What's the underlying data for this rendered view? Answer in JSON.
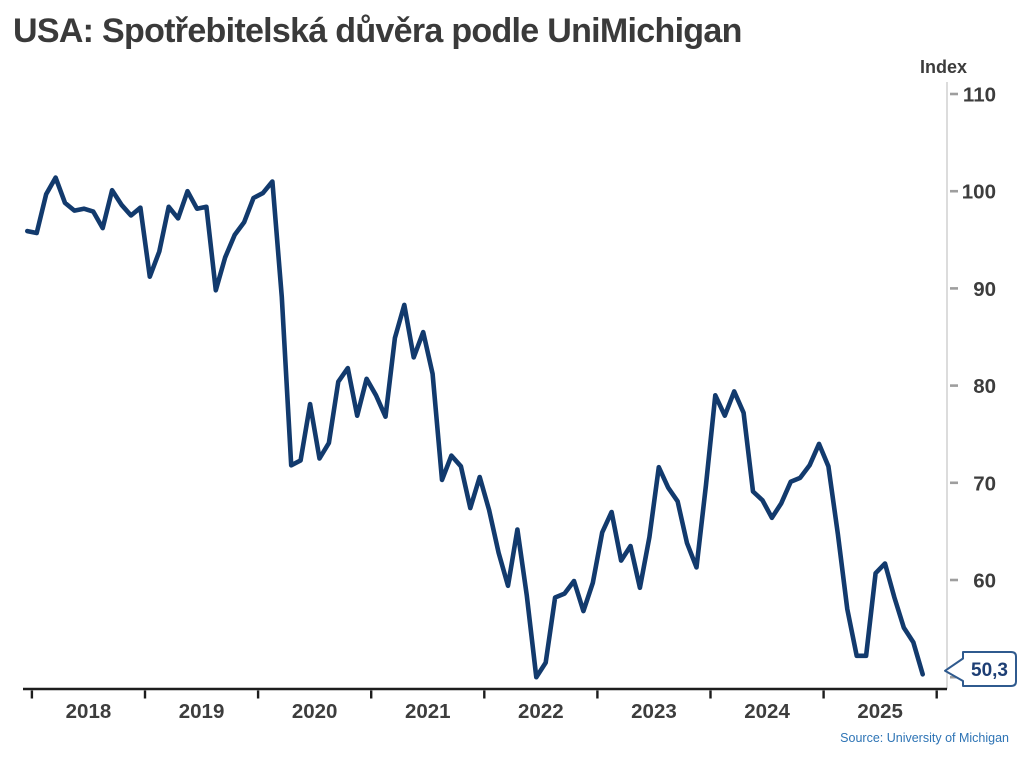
{
  "title": "USA: Spotřebitelská důvěra podle UniMichigan",
  "y_axis_title": "Index",
  "callout": {
    "label": "50,3"
  },
  "source_note": "Source: University of Michigan",
  "colors": {
    "line": "#123a6d",
    "axis_dark": "#1d1d1d",
    "axis_light": "#c9c9c9",
    "y_tick": "#9e9e9e",
    "tick_label": "#3d3d3d",
    "callout_border": "#2f5a8e",
    "callout_text": "#1d3e74",
    "source_text": "#2e74b5",
    "title_text": "#3a3a3a"
  },
  "chart_data": {
    "type": "line",
    "title": "USA: Spotřebitelská důvěra podle UniMichigan",
    "xlabel": "",
    "ylabel": "Index",
    "ylim": [
      49,
      111
    ],
    "grid": "off",
    "legend": "none",
    "y_ticks": [
      {
        "value": 110,
        "label": "110"
      },
      {
        "value": 100,
        "label": "100"
      },
      {
        "value": 90,
        "label": "90"
      },
      {
        "value": 80,
        "label": "80"
      },
      {
        "value": 70,
        "label": "70"
      },
      {
        "value": 60,
        "label": "60"
      },
      {
        "value": 50,
        "label": ""
      }
    ],
    "x_tick_years": [
      "2018",
      "2019",
      "2020",
      "2021",
      "2022",
      "2023",
      "2024",
      "2025"
    ],
    "x_range": [
      "2017-12",
      "2025-11"
    ],
    "last_point_label": "50,3",
    "series": [
      {
        "name": "University of Michigan Consumer Sentiment Index",
        "dates": [
          "2017-12",
          "2018-01",
          "2018-02",
          "2018-03",
          "2018-04",
          "2018-05",
          "2018-06",
          "2018-07",
          "2018-08",
          "2018-09",
          "2018-10",
          "2018-11",
          "2018-12",
          "2019-01",
          "2019-02",
          "2019-03",
          "2019-04",
          "2019-05",
          "2019-06",
          "2019-07",
          "2019-08",
          "2019-09",
          "2019-10",
          "2019-11",
          "2019-12",
          "2020-01",
          "2020-02",
          "2020-03",
          "2020-04",
          "2020-05",
          "2020-06",
          "2020-07",
          "2020-08",
          "2020-09",
          "2020-10",
          "2020-11",
          "2020-12",
          "2021-01",
          "2021-02",
          "2021-03",
          "2021-04",
          "2021-05",
          "2021-06",
          "2021-07",
          "2021-08",
          "2021-09",
          "2021-10",
          "2021-11",
          "2021-12",
          "2022-01",
          "2022-02",
          "2022-03",
          "2022-04",
          "2022-05",
          "2022-06",
          "2022-07",
          "2022-08",
          "2022-09",
          "2022-10",
          "2022-11",
          "2022-12",
          "2023-01",
          "2023-02",
          "2023-03",
          "2023-04",
          "2023-05",
          "2023-06",
          "2023-07",
          "2023-08",
          "2023-09",
          "2023-10",
          "2023-11",
          "2023-12",
          "2024-01",
          "2024-02",
          "2024-03",
          "2024-04",
          "2024-05",
          "2024-06",
          "2024-07",
          "2024-08",
          "2024-09",
          "2024-10",
          "2024-11",
          "2024-12",
          "2025-01",
          "2025-02",
          "2025-03",
          "2025-04",
          "2025-05",
          "2025-06",
          "2025-07",
          "2025-08",
          "2025-09",
          "2025-10",
          "2025-11"
        ],
        "values": [
          95.9,
          95.7,
          99.7,
          101.4,
          98.8,
          98.0,
          98.2,
          97.9,
          96.2,
          100.1,
          98.6,
          97.5,
          98.3,
          91.2,
          93.8,
          98.4,
          97.2,
          100.0,
          98.2,
          98.4,
          89.8,
          93.2,
          95.5,
          96.8,
          99.3,
          99.8,
          101.0,
          89.1,
          71.8,
          72.3,
          78.1,
          72.5,
          74.1,
          80.4,
          81.8,
          76.9,
          80.7,
          79.0,
          76.8,
          84.9,
          88.3,
          82.9,
          85.5,
          81.2,
          70.3,
          72.8,
          71.7,
          67.4,
          70.6,
          67.2,
          62.8,
          59.4,
          65.2,
          58.4,
          50.0,
          51.5,
          58.2,
          58.6,
          59.9,
          56.8,
          59.7,
          64.9,
          67.0,
          62.0,
          63.5,
          59.2,
          64.4,
          71.6,
          69.5,
          68.1,
          63.8,
          61.3,
          69.7,
          79.0,
          76.9,
          79.4,
          77.2,
          69.1,
          68.2,
          66.4,
          67.9,
          70.1,
          70.5,
          71.8,
          74.0,
          71.7,
          64.7,
          57.0,
          52.2,
          52.2,
          60.7,
          61.7,
          58.2,
          55.1,
          53.6,
          50.3
        ]
      }
    ]
  }
}
